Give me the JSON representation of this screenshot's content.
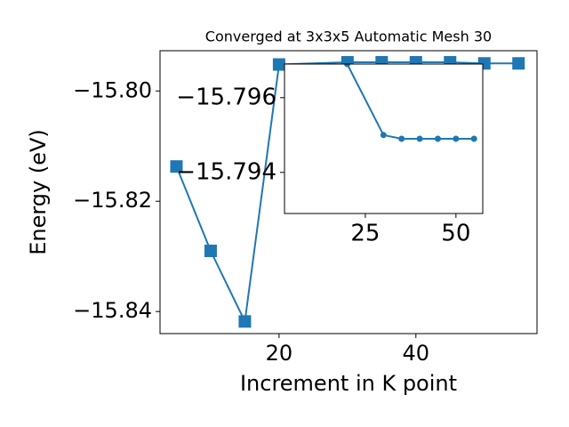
{
  "chart_data": [
    {
      "type": "line",
      "title": "Converged at 3x3x5 Automatic Mesh 30",
      "x_label": "Increment in K point",
      "y_label": "Energy (eV)",
      "marker": "square",
      "x": [
        5,
        10,
        15,
        20,
        30,
        35,
        40,
        45,
        50,
        55
      ],
      "series": [
        {
          "color": "#1f77b4",
          "values": [
            -15.8137,
            -15.829,
            -15.8418,
            -15.7952,
            -15.7948,
            -15.7948,
            -15.7948,
            -15.7948,
            -15.795,
            -15.795
          ]
        }
      ],
      "xlim": [
        2.6,
        57.7
      ],
      "ylim": [
        -15.844,
        -15.7927
      ],
      "xticks": [
        20,
        40
      ],
      "yticks": [
        {
          "value": -15.8,
          "label": "−15.80"
        },
        {
          "value": -15.82,
          "label": "−15.82"
        },
        {
          "value": -15.84,
          "label": "−15.84"
        }
      ]
    },
    {
      "type": "line",
      "marker": "circle",
      "x": [
        20,
        30,
        35,
        40,
        45,
        50,
        55
      ],
      "series": [
        {
          "color": "#1f77b4",
          "values": [
            -15.7969,
            -15.795,
            -15.7949,
            -15.7949,
            -15.7949,
            -15.7949,
            -15.7949
          ]
        }
      ],
      "xlim": [
        2.7,
        57.4
      ],
      "ylim": [
        -15.7929,
        -15.7969
      ],
      "xticks": [
        25,
        50
      ],
      "yticks": [
        {
          "value": -15.796,
          "label": "−15.796"
        },
        {
          "value": -15.794,
          "label": "−15.794"
        }
      ]
    }
  ]
}
